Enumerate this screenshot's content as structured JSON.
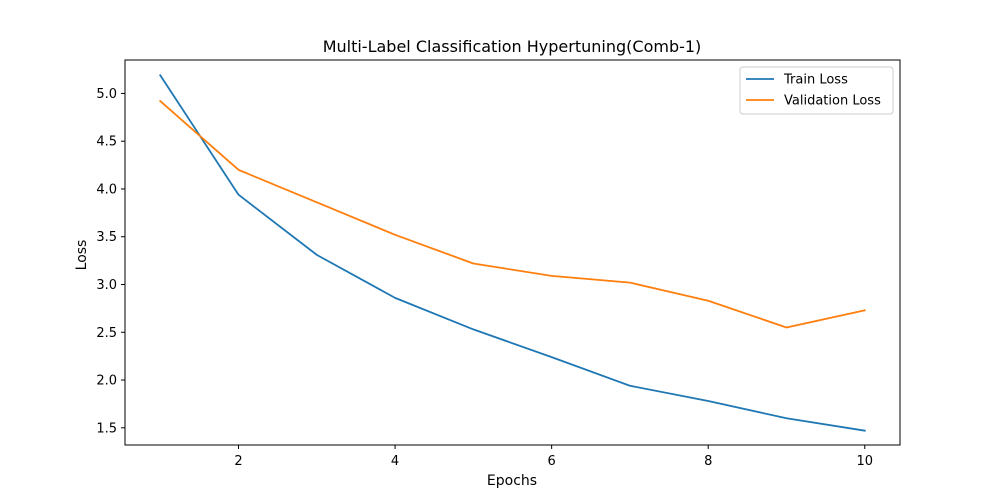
{
  "chart_data": {
    "type": "line",
    "title": "Multi-Label Classification Hypertuning(Comb-1)",
    "xlabel": "Epochs",
    "ylabel": "Loss",
    "xlim": [
      0.55,
      10.45
    ],
    "ylim": [
      1.32,
      5.35
    ],
    "xticks": [
      2,
      4,
      6,
      8,
      10
    ],
    "yticks": [
      1.5,
      2.0,
      2.5,
      3.0,
      3.5,
      4.0,
      4.5,
      5.0
    ],
    "ytick_labels": [
      "1.5",
      "2.0",
      "2.5",
      "3.0",
      "3.5",
      "4.0",
      "4.5",
      "5.0"
    ],
    "grid": false,
    "legend_position": "top-right",
    "x": [
      1,
      2,
      3,
      4,
      5,
      6,
      7,
      8,
      9,
      10
    ],
    "series": [
      {
        "name": "Train Loss",
        "color": "#1f77b4",
        "values": [
          5.19,
          3.94,
          3.31,
          2.86,
          2.53,
          2.24,
          1.94,
          1.78,
          1.6,
          1.47
        ]
      },
      {
        "name": "Validation Loss",
        "color": "#ff7f0e",
        "values": [
          4.92,
          4.2,
          3.86,
          3.52,
          3.22,
          3.09,
          3.02,
          2.83,
          2.55,
          2.73
        ]
      }
    ]
  }
}
